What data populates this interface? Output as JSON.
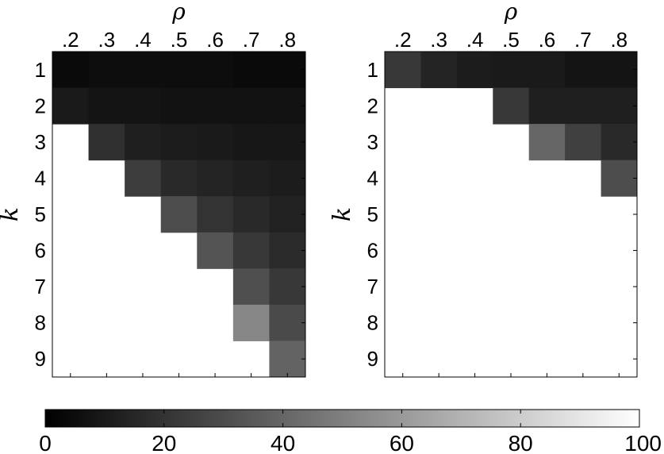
{
  "chart_data": [
    {
      "type": "heatmap",
      "title": "",
      "xlabel": "ρ",
      "ylabel": "k",
      "x": [
        ".2",
        ".3",
        ".4",
        ".5",
        ".6",
        ".7",
        ".8"
      ],
      "y": [
        "1",
        "2",
        "3",
        "4",
        "5",
        "6",
        "7",
        "8",
        "9"
      ],
      "values": [
        [
          4,
          5,
          5,
          5,
          5,
          4,
          4
        ],
        [
          10,
          8,
          8,
          7,
          7,
          7,
          7
        ],
        [
          null,
          19,
          12,
          11,
          10,
          9,
          9
        ],
        [
          null,
          null,
          24,
          16,
          14,
          12,
          11
        ],
        [
          null,
          null,
          null,
          30,
          20,
          16,
          13
        ],
        [
          null,
          null,
          null,
          null,
          33,
          22,
          17
        ],
        [
          null,
          null,
          null,
          null,
          null,
          31,
          22
        ],
        [
          null,
          null,
          null,
          null,
          null,
          53,
          29
        ],
        [
          null,
          null,
          null,
          null,
          null,
          null,
          39
        ]
      ]
    },
    {
      "type": "heatmap",
      "title": "",
      "xlabel": "ρ",
      "ylabel": "k",
      "x": [
        ".2",
        ".3",
        ".4",
        ".5",
        ".6",
        ".7",
        ".8"
      ],
      "y": [
        "1",
        "2",
        "3",
        "4",
        "5",
        "6",
        "7",
        "8",
        "9"
      ],
      "values": [
        [
          22,
          14,
          11,
          10,
          10,
          8,
          8
        ],
        [
          null,
          null,
          null,
          22,
          12,
          12,
          12
        ],
        [
          null,
          null,
          null,
          null,
          40,
          25,
          16
        ],
        [
          null,
          null,
          null,
          null,
          null,
          null,
          30
        ],
        [
          null,
          null,
          null,
          null,
          null,
          null,
          null
        ],
        [
          null,
          null,
          null,
          null,
          null,
          null,
          null
        ],
        [
          null,
          null,
          null,
          null,
          null,
          null,
          null
        ],
        [
          null,
          null,
          null,
          null,
          null,
          null,
          null
        ],
        [
          null,
          null,
          null,
          null,
          null,
          null,
          null
        ]
      ]
    }
  ],
  "colorbar": {
    "range": [
      0,
      100
    ],
    "colors": [
      "#000000",
      "#ffffff"
    ],
    "ticks": [
      "0",
      "20",
      "40",
      "60",
      "80",
      "100"
    ]
  }
}
